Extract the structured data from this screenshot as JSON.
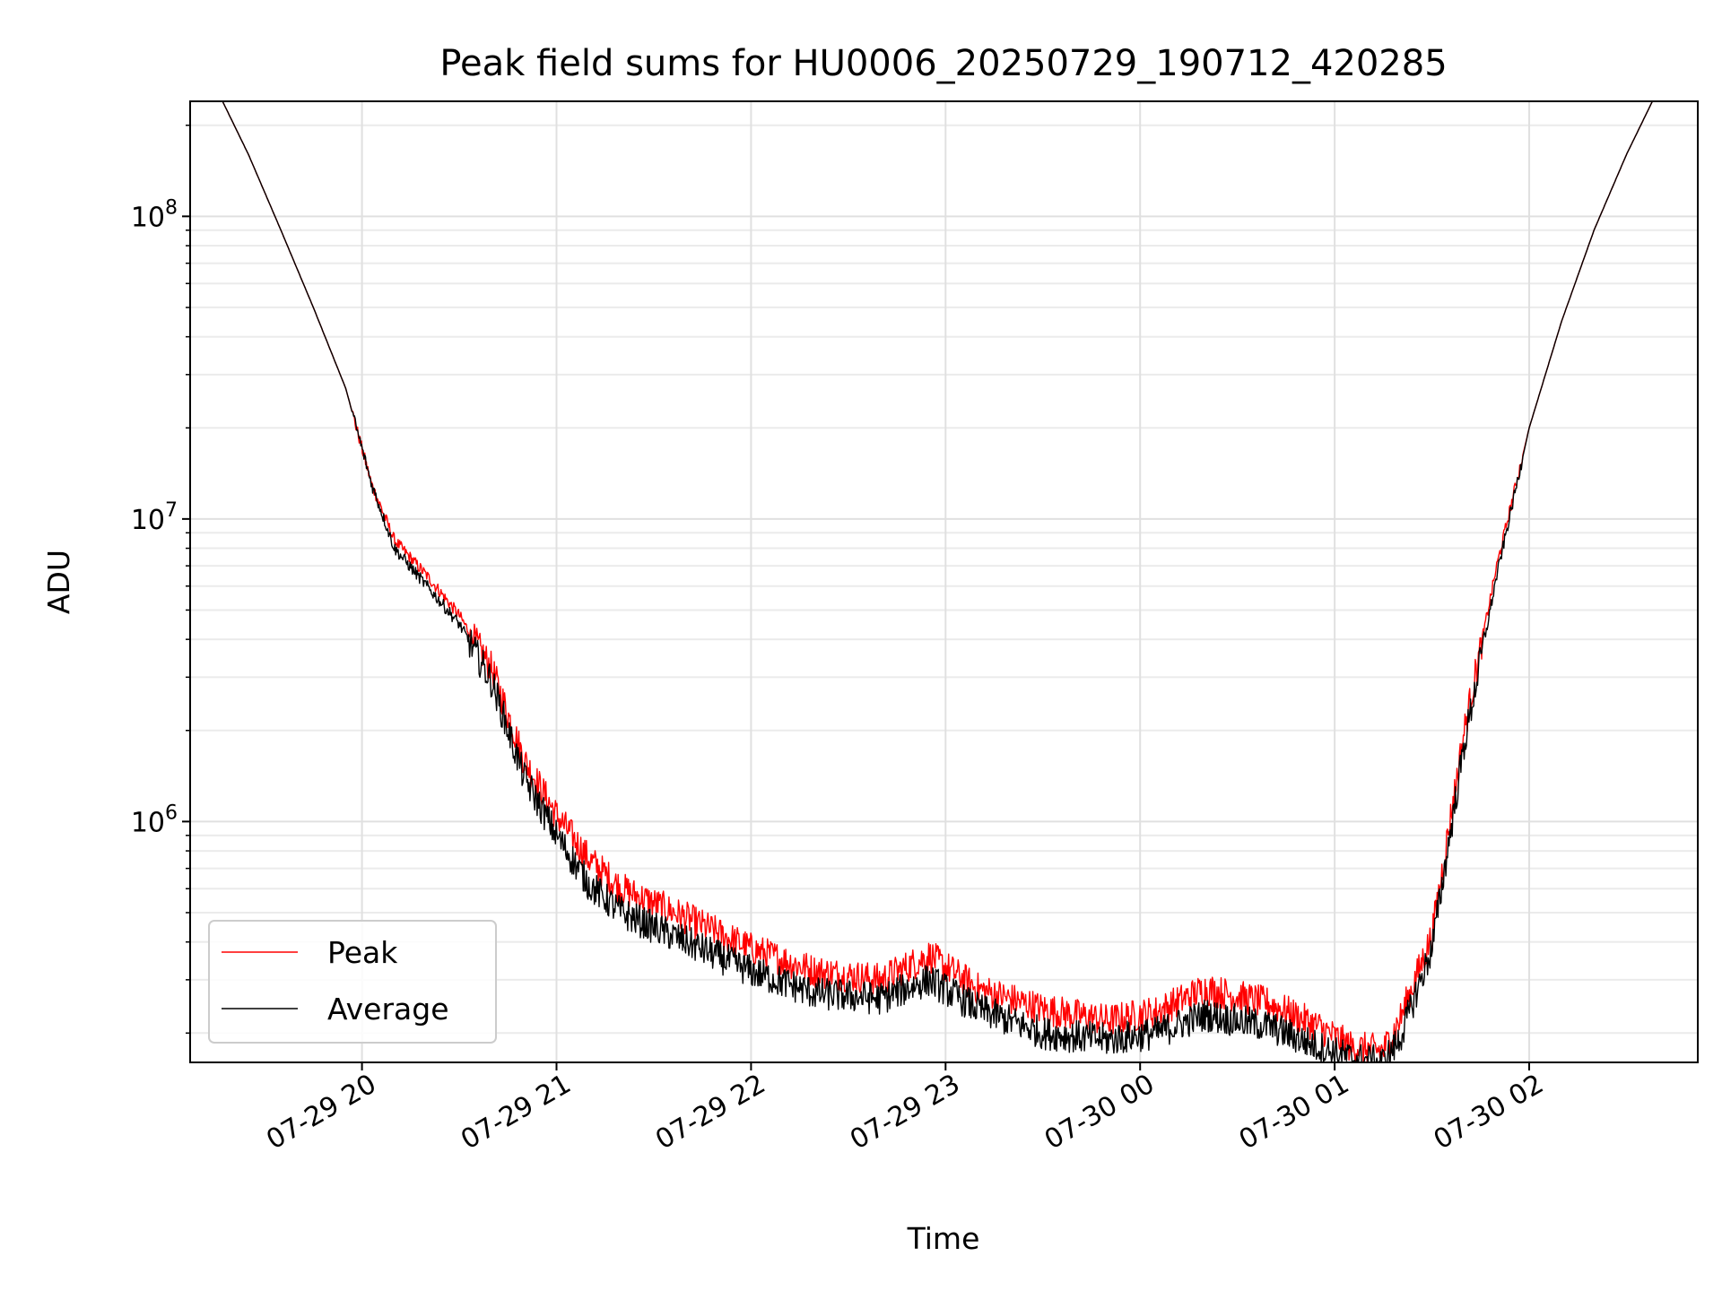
{
  "chart_data": {
    "type": "line",
    "title": "Peak field sums for HU0006_20250729_190712_420285",
    "xlabel": "Time",
    "ylabel": "ADU",
    "yscale": "log",
    "ylim": [
      160000,
      240000000
    ],
    "xlim": [
      "07-29 19:07",
      "07-30 02:52"
    ],
    "grid": "major and minor",
    "legend_position": "lower-left",
    "x_ticks": [
      "07-29 20",
      "07-29 21",
      "07-29 22",
      "07-29 23",
      "07-30 00",
      "07-30 01",
      "07-30 02"
    ],
    "y_ticks": [
      {
        "base": "10",
        "exp": "6",
        "value": 1000000
      },
      {
        "base": "10",
        "exp": "7",
        "value": 10000000
      },
      {
        "base": "10",
        "exp": "8",
        "value": 100000000
      }
    ],
    "series": [
      {
        "name": "Peak",
        "color": "#ff0000",
        "x": [
          "07-29 19:17",
          "07-29 19:25",
          "07-29 19:35",
          "07-29 19:45",
          "07-29 19:55",
          "07-29 20:03",
          "07-29 20:10",
          "07-29 20:20",
          "07-29 20:30",
          "07-29 20:40",
          "07-29 20:50",
          "07-29 21:00",
          "07-29 21:10",
          "07-29 21:20",
          "07-29 21:40",
          "07-29 22:00",
          "07-29 22:20",
          "07-29 22:40",
          "07-29 22:55",
          "07-29 23:10",
          "07-29 23:30",
          "07-29 23:50",
          "07-30 00:05",
          "07-30 00:20",
          "07-30 00:40",
          "07-30 00:55",
          "07-30 01:05",
          "07-30 01:15",
          "07-30 01:20",
          "07-30 01:30",
          "07-30 01:40",
          "07-30 01:50",
          "07-30 02:00",
          "07-30 02:10",
          "07-30 02:20",
          "07-30 02:30",
          "07-30 02:38"
        ],
        "y": [
          240000000,
          160000000,
          90000000,
          50000000,
          27000000,
          13000000,
          8500000,
          6500000,
          4800000,
          3200000,
          1600000,
          1050000,
          750000,
          600000,
          480000,
          380000,
          320000,
          300000,
          360000,
          280000,
          240000,
          220000,
          235000,
          280000,
          250000,
          210000,
          180000,
          175000,
          220000,
          420000,
          2000000,
          7000000,
          20000000,
          45000000,
          90000000,
          160000000,
          240000000
        ]
      },
      {
        "name": "Average",
        "color": "#000000",
        "x": [
          "07-29 19:17",
          "07-29 19:25",
          "07-29 19:35",
          "07-29 19:45",
          "07-29 19:55",
          "07-29 20:03",
          "07-29 20:10",
          "07-29 20:20",
          "07-29 20:30",
          "07-29 20:40",
          "07-29 20:50",
          "07-29 21:00",
          "07-29 21:10",
          "07-29 21:20",
          "07-29 21:40",
          "07-29 22:00",
          "07-29 22:20",
          "07-29 22:40",
          "07-29 22:55",
          "07-29 23:10",
          "07-29 23:30",
          "07-29 23:50",
          "07-30 00:05",
          "07-30 00:20",
          "07-30 00:40",
          "07-30 00:55",
          "07-30 01:05",
          "07-30 01:15",
          "07-30 01:20",
          "07-30 01:30",
          "07-30 01:40",
          "07-30 01:50",
          "07-30 02:00",
          "07-30 02:10",
          "07-30 02:20",
          "07-30 02:30",
          "07-30 02:38"
        ],
        "y": [
          240000000,
          160000000,
          90000000,
          50000000,
          27000000,
          13000000,
          8000000,
          6000000,
          4500000,
          2900000,
          1400000,
          900000,
          620000,
          500000,
          400000,
          320000,
          270000,
          260000,
          300000,
          240000,
          200000,
          190000,
          200000,
          230000,
          210000,
          180000,
          165000,
          160000,
          190000,
          380000,
          1800000,
          6500000,
          20000000,
          45000000,
          90000000,
          160000000,
          240000000
        ]
      }
    ]
  }
}
